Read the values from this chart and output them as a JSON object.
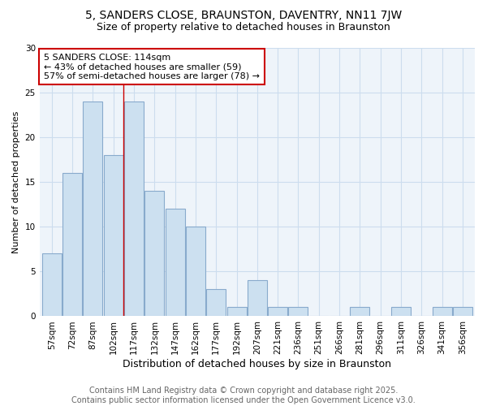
{
  "title": "5, SANDERS CLOSE, BRAUNSTON, DAVENTRY, NN11 7JW",
  "subtitle": "Size of property relative to detached houses in Braunston",
  "xlabel": "Distribution of detached houses by size in Braunston",
  "ylabel": "Number of detached properties",
  "categories": [
    "57sqm",
    "72sqm",
    "87sqm",
    "102sqm",
    "117sqm",
    "132sqm",
    "147sqm",
    "162sqm",
    "177sqm",
    "192sqm",
    "207sqm",
    "221sqm",
    "236sqm",
    "251sqm",
    "266sqm",
    "281sqm",
    "296sqm",
    "311sqm",
    "326sqm",
    "341sqm",
    "356sqm"
  ],
  "values": [
    7,
    16,
    24,
    18,
    24,
    14,
    12,
    10,
    3,
    1,
    4,
    1,
    1,
    0,
    0,
    1,
    0,
    1,
    0,
    1,
    1
  ],
  "bar_color": "#cce0f0",
  "bar_edge_color": "#88aacc",
  "annotation_text": "5 SANDERS CLOSE: 114sqm\n← 43% of detached houses are smaller (59)\n57% of semi-detached houses are larger (78) →",
  "annotation_box_color": "#ffffff",
  "annotation_box_edge_color": "#cc0000",
  "vline_x": 3.5,
  "vline_color": "#cc0000",
  "ylim": [
    0,
    30
  ],
  "yticks": [
    0,
    5,
    10,
    15,
    20,
    25,
    30
  ],
  "grid_color": "#ccddee",
  "bg_color": "#ffffff",
  "plot_bg_color": "#eef4fa",
  "footer_text": "Contains HM Land Registry data © Crown copyright and database right 2025.\nContains public sector information licensed under the Open Government Licence v3.0.",
  "title_fontsize": 10,
  "subtitle_fontsize": 9,
  "xlabel_fontsize": 9,
  "ylabel_fontsize": 8,
  "tick_fontsize": 7.5,
  "annotation_fontsize": 8,
  "footer_fontsize": 7
}
